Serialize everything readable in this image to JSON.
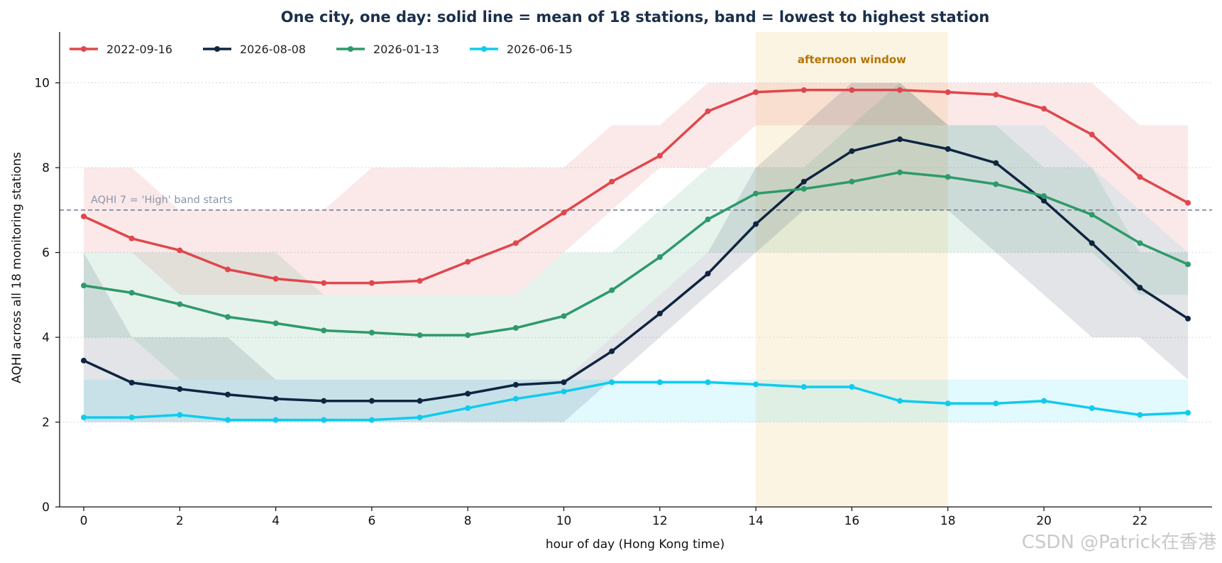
{
  "chart_data": {
    "type": "line",
    "title": "One city, one day: solid line = mean of 18 stations, band = lowest to highest station",
    "xlabel": "hour of day (Hong Kong time)",
    "ylabel": "AQHI across all 18 monitoring stations",
    "xlim": [
      -0.5,
      23.5
    ],
    "ylim": [
      0,
      11.2
    ],
    "x": [
      0,
      1,
      2,
      3,
      4,
      5,
      6,
      7,
      8,
      9,
      10,
      11,
      12,
      13,
      14,
      15,
      16,
      17,
      18,
      19,
      20,
      21,
      22,
      23
    ],
    "x_ticks": [
      0,
      2,
      4,
      6,
      8,
      10,
      12,
      14,
      16,
      18,
      20,
      22
    ],
    "y_ticks": [
      0,
      2,
      4,
      6,
      8,
      10
    ],
    "grid": "horizontal dotted",
    "legend_position": "top-left",
    "series": [
      {
        "name": "2022-09-16",
        "color": "#e0474c",
        "mean": [
          6.85,
          6.33,
          6.05,
          5.6,
          5.38,
          5.28,
          5.28,
          5.33,
          5.78,
          6.22,
          6.94,
          7.67,
          8.28,
          9.33,
          9.78,
          9.83,
          9.83,
          9.83,
          9.78,
          9.72,
          9.39,
          8.78,
          7.78,
          7.17
        ],
        "low": [
          6,
          6,
          5,
          5,
          5,
          5,
          5,
          5,
          5,
          5,
          6,
          7,
          8,
          8,
          9,
          9,
          9,
          9,
          9,
          9,
          9,
          8,
          7,
          6
        ],
        "high": [
          8,
          8,
          7,
          7,
          7,
          7,
          8,
          8,
          8,
          8,
          8,
          9,
          9,
          10,
          10,
          10,
          10,
          10,
          10,
          10,
          10,
          10,
          9,
          9
        ]
      },
      {
        "name": "2026-08-08",
        "color": "#0f2541",
        "mean": [
          3.45,
          2.93,
          2.78,
          2.65,
          2.55,
          2.5,
          2.5,
          2.5,
          2.67,
          2.88,
          2.94,
          3.67,
          4.56,
          5.5,
          6.67,
          7.67,
          8.39,
          8.67,
          8.44,
          8.11,
          7.22,
          6.22,
          5.17,
          4.44
        ],
        "low": [
          2,
          2,
          2,
          2,
          2,
          2,
          2,
          2,
          2,
          2,
          2,
          3,
          4,
          5,
          6,
          7,
          7,
          7,
          7,
          6,
          5,
          4,
          4,
          3
        ],
        "high": [
          6,
          4,
          4,
          4,
          3,
          3,
          3,
          3,
          3,
          3,
          3,
          4,
          5,
          6,
          8,
          9,
          10,
          10,
          9,
          9,
          9,
          8,
          7,
          6
        ]
      },
      {
        "name": "2026-01-13",
        "color": "#2e9a6b",
        "mean": [
          5.22,
          5.05,
          4.78,
          4.48,
          4.33,
          4.16,
          4.11,
          4.05,
          4.05,
          4.22,
          4.5,
          5.11,
          5.89,
          6.78,
          7.39,
          7.5,
          7.67,
          7.89,
          7.78,
          7.61,
          7.33,
          6.89,
          6.22,
          5.72
        ],
        "low": [
          4,
          4,
          3,
          3,
          3,
          3,
          3,
          3,
          3,
          3,
          3,
          4,
          5,
          6,
          6,
          6,
          6,
          6,
          6,
          6,
          6,
          6,
          5,
          5
        ],
        "high": [
          6,
          6,
          6,
          6,
          6,
          5,
          5,
          5,
          5,
          5,
          6,
          6,
          7,
          8,
          8,
          8,
          9,
          10,
          9,
          9,
          8,
          8,
          6,
          6
        ]
      },
      {
        "name": "2026-06-15",
        "color": "#0fcbef",
        "mean": [
          2.11,
          2.11,
          2.17,
          2.05,
          2.05,
          2.05,
          2.05,
          2.11,
          2.33,
          2.55,
          2.72,
          2.94,
          2.94,
          2.94,
          2.89,
          2.83,
          2.83,
          2.5,
          2.44,
          2.44,
          2.5,
          2.33,
          2.17,
          2.22
        ],
        "low": [
          2,
          2,
          2,
          2,
          2,
          2,
          2,
          2,
          2,
          2,
          2,
          2,
          2,
          2,
          2,
          2,
          2,
          2,
          2,
          2,
          2,
          2,
          2,
          2
        ],
        "high": [
          3,
          3,
          3,
          3,
          3,
          3,
          3,
          3,
          3,
          3,
          3,
          3,
          3,
          3,
          3,
          3,
          3,
          3,
          3,
          3,
          3,
          3,
          3,
          3
        ]
      }
    ],
    "reference_line": {
      "y": 7,
      "label": "AQHI 7 = 'High' band starts",
      "color": "#6b7a8c"
    },
    "highlight_window": {
      "x_start": 14,
      "x_end": 18,
      "label": "afternoon window",
      "color": "#f5d9a0"
    }
  },
  "watermark": "CSDN @Patrick在香港"
}
